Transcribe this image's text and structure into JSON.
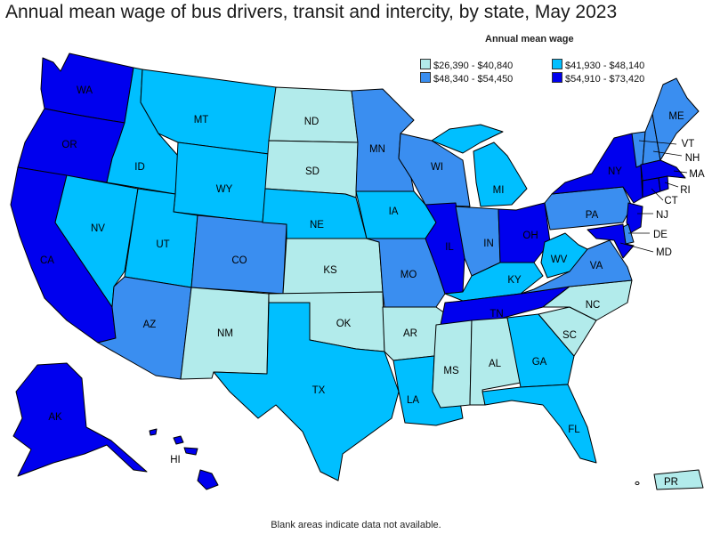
{
  "title": "Annual mean wage of bus drivers, transit and intercity, by state, May 2023",
  "legend": {
    "title": "Annual mean wage",
    "items": [
      {
        "label": "$26,390 - $40,840",
        "color": "#b2ebeb"
      },
      {
        "label": "$41,930 - $48,140",
        "color": "#00bfff"
      },
      {
        "label": "$48,340 - $54,450",
        "color": "#3a8ef0"
      },
      {
        "label": "$54,910 - $73,420",
        "color": "#0000ee"
      }
    ]
  },
  "footnote": "Blank areas indicate data not available.",
  "states": {
    "WA": "4",
    "OR": "4",
    "CA": "4",
    "AK": "4",
    "HI": "4",
    "NV": "2",
    "ID": "2",
    "MT": "2",
    "WY": "2",
    "UT": "2",
    "AZ": "3",
    "CO": "3",
    "NM": "1",
    "ND": "1",
    "SD": "1",
    "NE": "2",
    "KS": "1",
    "OK": "1",
    "TX": "2",
    "MN": "3",
    "IA": "2",
    "MO": "3",
    "AR": "1",
    "LA": "2",
    "WI": "3",
    "IL": "4",
    "MI": "2",
    "IN": "3",
    "OH": "4",
    "KY": "2",
    "TN": "4",
    "MS": "1",
    "AL": "1",
    "GA": "2",
    "FL": "2",
    "SC": "1",
    "NC": "1",
    "VA": "3",
    "WV": "2",
    "PA": "3",
    "NY": "4",
    "ME": "3",
    "NH": "3",
    "VT": "3",
    "MA": "4",
    "RI": "4",
    "CT": "4",
    "NJ": "4",
    "DE": "3",
    "MD": "4",
    "PR": "1"
  }
}
